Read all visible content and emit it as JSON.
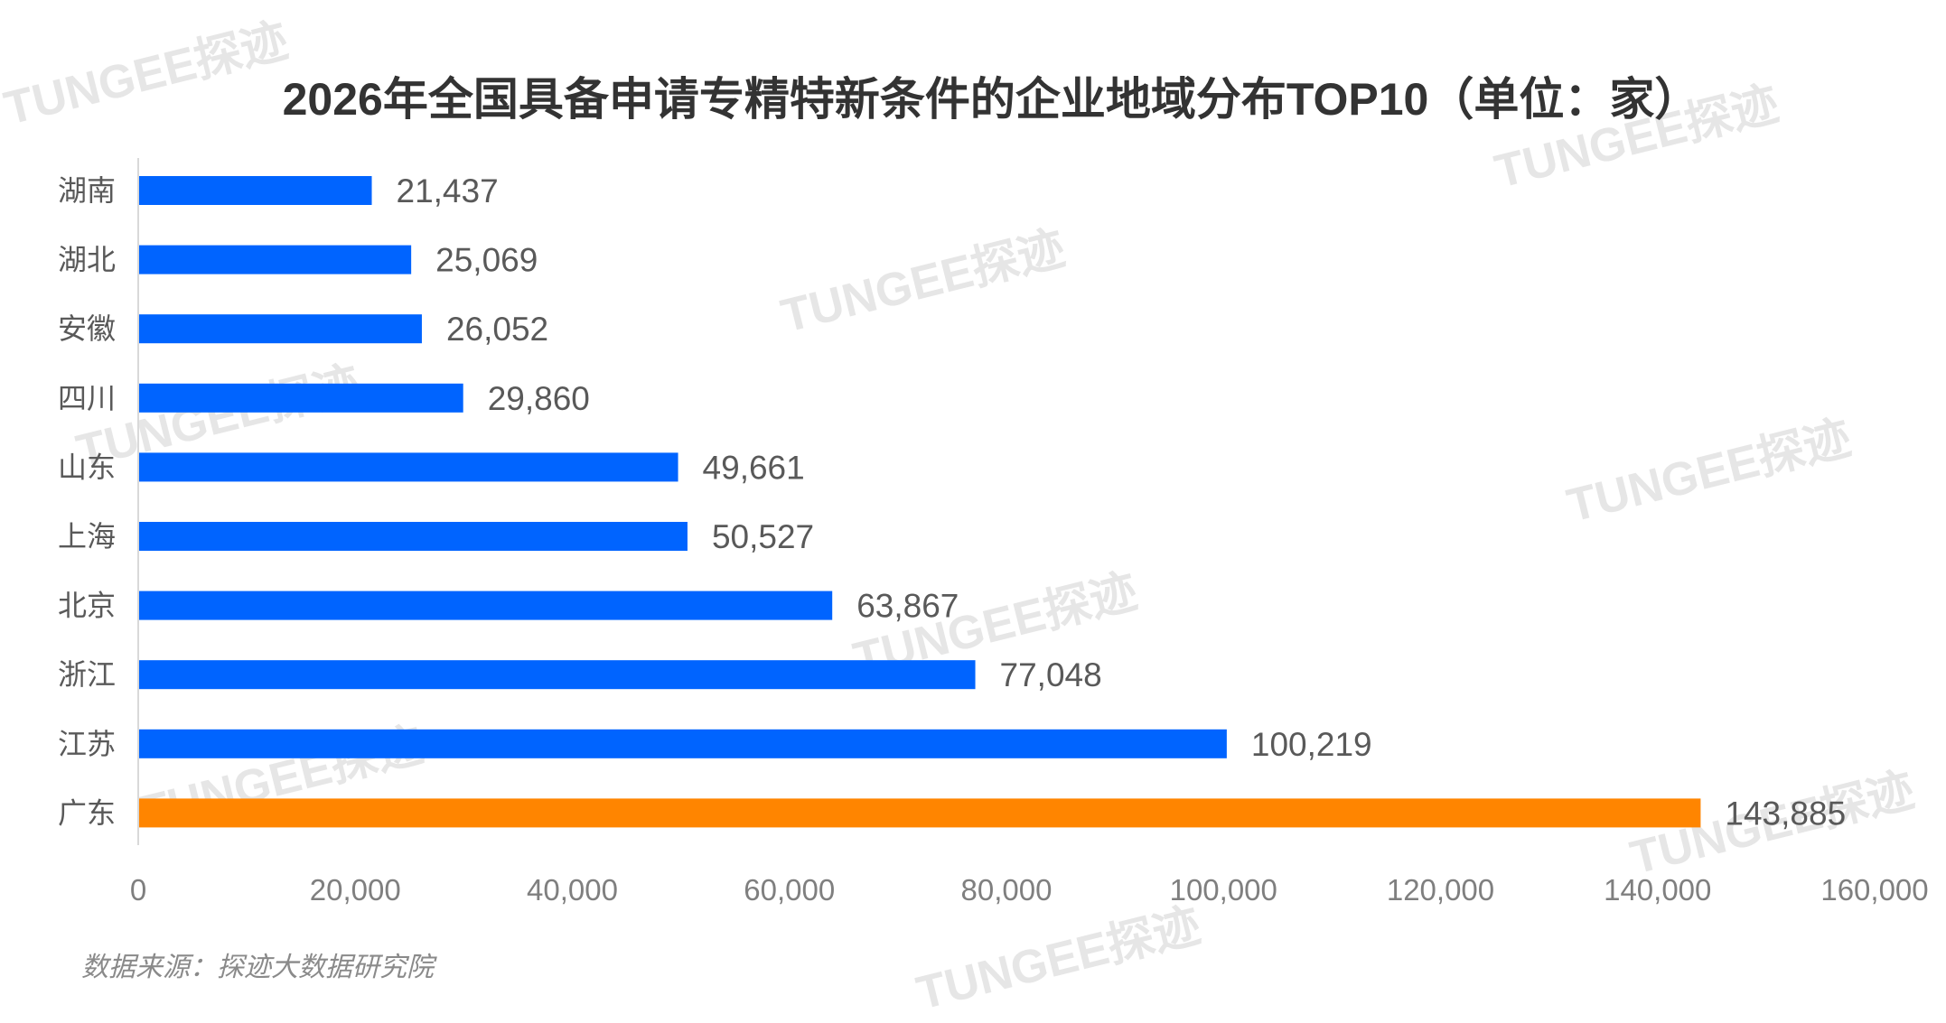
{
  "watermark": "TUNGEE探迹",
  "source": "数据来源：探迹大数据研究院",
  "chart_data": {
    "type": "bar",
    "orientation": "horizontal",
    "title": "2026年全国具备申请专精特新条件的企业地域分布TOP10（单位：家）",
    "categories": [
      "湖南",
      "湖北",
      "安徽",
      "四川",
      "山东",
      "上海",
      "北京",
      "浙江",
      "江苏",
      "广东"
    ],
    "values": [
      21437,
      25069,
      26052,
      29860,
      49661,
      50527,
      63867,
      77048,
      100219,
      143885
    ],
    "value_labels": [
      "21,437",
      "25,069",
      "26,052",
      "29,860",
      "49,661",
      "50,527",
      "63,867",
      "77,048",
      "100,219",
      "143,885"
    ],
    "xlim": [
      0,
      160000
    ],
    "x_ticks": [
      "0",
      "20,000",
      "40,000",
      "60,000",
      "80,000",
      "100,000",
      "120,000",
      "140,000",
      "160,000"
    ],
    "grid": false,
    "legend": "none",
    "colors": {
      "default": "#0064ff",
      "highlight": "#ff8500",
      "highlight_category": "广东"
    }
  }
}
